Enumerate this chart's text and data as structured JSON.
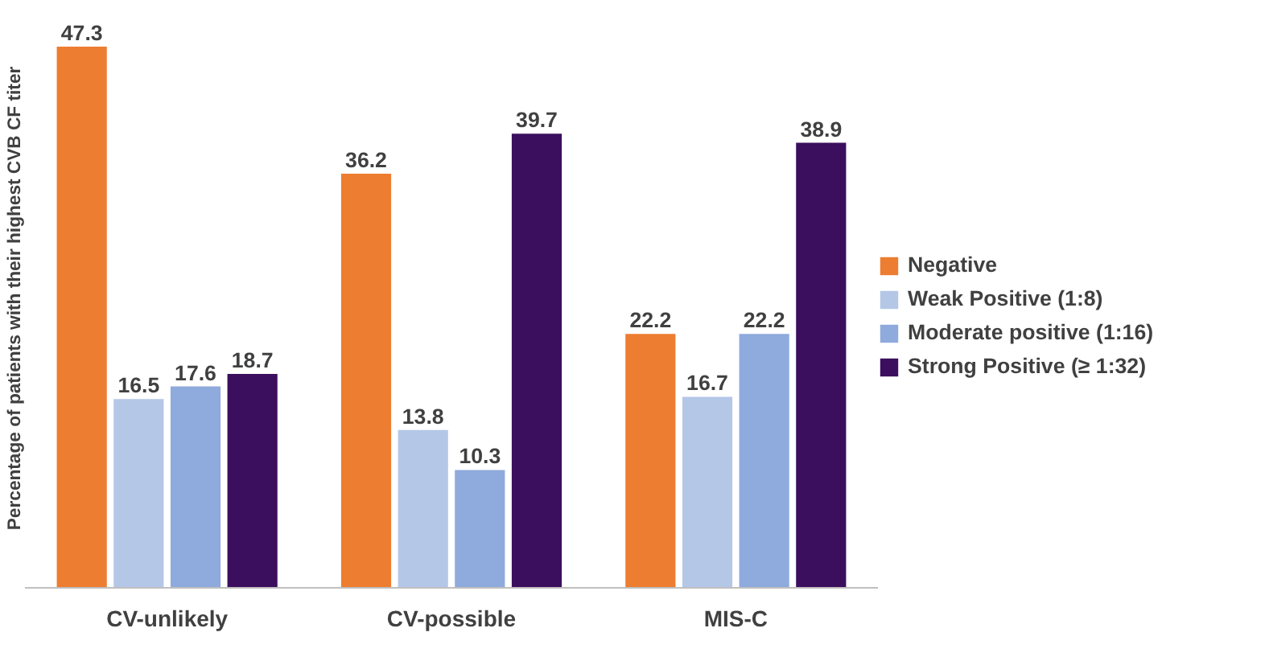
{
  "chart_data": {
    "type": "bar",
    "ylabel": "Percentage of patients with their highest CVB CF titer",
    "categories": [
      "CV-unlikely",
      "CV-possible",
      "MIS-C"
    ],
    "series": [
      {
        "name": "Negative",
        "color": "#ed7d31",
        "values": [
          47.3,
          36.2,
          22.2
        ]
      },
      {
        "name": "Weak Positive (1:8)",
        "color": "#b4c7e7",
        "values": [
          16.5,
          13.8,
          16.7
        ]
      },
      {
        "name": "Moderate positive (1:16)",
        "color": "#8faadc",
        "values": [
          17.6,
          10.3,
          22.2
        ]
      },
      {
        "name": "Strong Positive (≥ 1:32)",
        "color": "#3b0f5e",
        "values": [
          18.7,
          39.7,
          38.9
        ]
      }
    ],
    "data_labels": true,
    "legend": "right",
    "grid": false
  }
}
